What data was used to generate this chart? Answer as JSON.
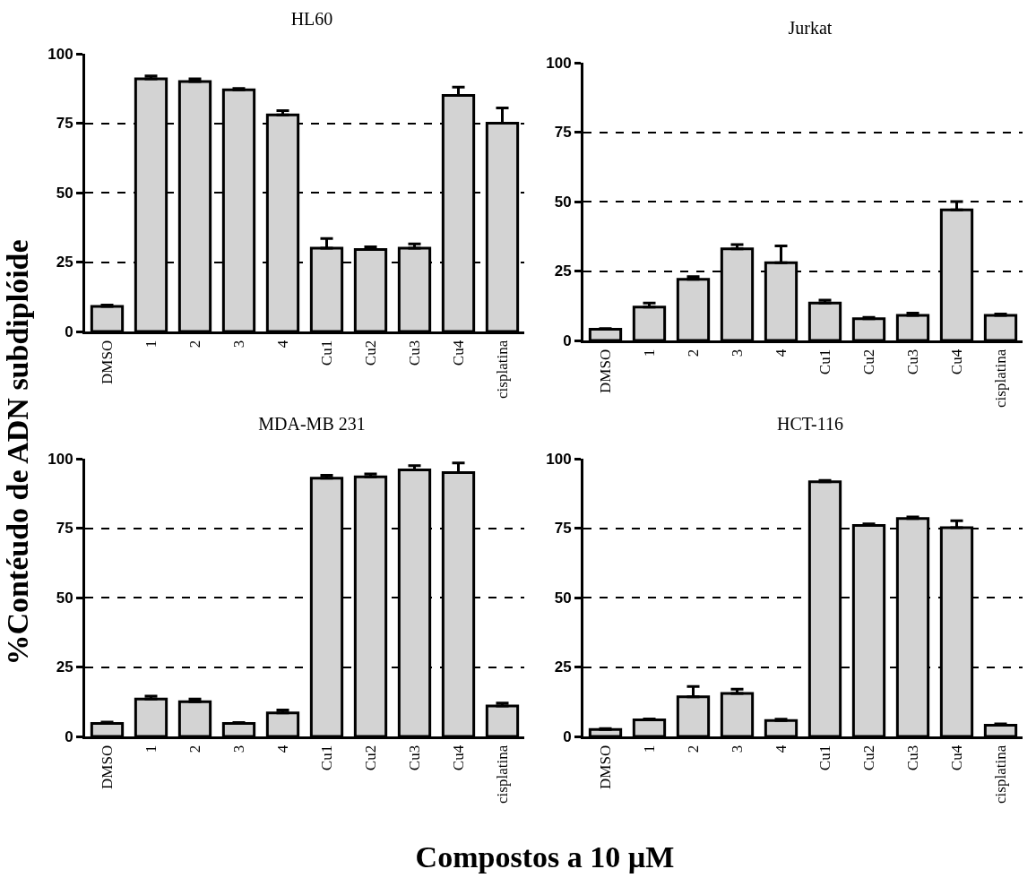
{
  "chart_data": [
    {
      "type": "bar",
      "title": "HL60",
      "ylabel": "%Contéudo de ADN subdiplóide",
      "categories": [
        "DMSO",
        "1",
        "2",
        "3",
        "4",
        "Cu1",
        "Cu2",
        "Cu3",
        "Cu4",
        "cisplatina"
      ],
      "values": [
        9,
        91,
        90,
        87,
        78,
        30,
        29.5,
        30,
        85,
        75
      ],
      "errors": [
        [
          9,
          9.5
        ],
        [
          91,
          92
        ],
        [
          90,
          91
        ],
        [
          87,
          87.5
        ],
        [
          78,
          79.5
        ],
        [
          30,
          33.5
        ],
        [
          29.5,
          30.5
        ],
        [
          30,
          31.5
        ],
        [
          85,
          88
        ],
        [
          75,
          80.5
        ]
      ],
      "color": "#d3d3d3",
      "ylim": [
        0,
        100
      ],
      "yticks": [
        0,
        25,
        50,
        75,
        100
      ],
      "grid": "y"
    },
    {
      "type": "bar",
      "title": "Jurkat",
      "categories": [
        "DMSO",
        "1",
        "2",
        "3",
        "4",
        "Cu1",
        "Cu2",
        "Cu3",
        "Cu4",
        "cisplatina"
      ],
      "values": [
        4,
        12,
        22,
        33,
        28,
        13.5,
        7.8,
        9,
        47,
        9
      ],
      "errors": [
        [
          4,
          4.3
        ],
        [
          12,
          13.5
        ],
        [
          22,
          23
        ],
        [
          33,
          34.5
        ],
        [
          28,
          34
        ],
        [
          13.5,
          14.5
        ],
        [
          7.8,
          8.3
        ],
        [
          9,
          9.8
        ],
        [
          47,
          50
        ],
        [
          9,
          9.5
        ]
      ],
      "color": "#d3d3d3",
      "ylim": [
        0,
        100
      ],
      "yticks": [
        0,
        25,
        50,
        75,
        100
      ],
      "grid": "y"
    },
    {
      "type": "bar",
      "title": "MDA-MB 231",
      "xlabel": "Compostos a 10 µM",
      "categories": [
        "DMSO",
        "1",
        "2",
        "3",
        "4",
        "Cu1",
        "Cu2",
        "Cu3",
        "Cu4",
        "cisplatina"
      ],
      "values": [
        4.7,
        13.5,
        12.5,
        4.7,
        8.5,
        93,
        93.5,
        96,
        95,
        11
      ],
      "errors": [
        [
          4.7,
          5.2
        ],
        [
          13.5,
          14.5
        ],
        [
          12.5,
          13.5
        ],
        [
          4.7,
          5
        ],
        [
          8.5,
          9.5
        ],
        [
          93,
          94
        ],
        [
          93.5,
          94.5
        ],
        [
          96,
          97.5
        ],
        [
          95,
          98.5
        ],
        [
          11,
          12
        ]
      ],
      "color": "#d3d3d3",
      "ylim": [
        0,
        100
      ],
      "yticks": [
        0,
        25,
        50,
        75,
        100
      ],
      "grid": "y"
    },
    {
      "type": "bar",
      "title": "HCT-116",
      "categories": [
        "DMSO",
        "1",
        "2",
        "3",
        "4",
        "Cu1",
        "Cu2",
        "Cu3",
        "Cu4",
        "cisplatina"
      ],
      "values": [
        2.5,
        6,
        14.3,
        15.5,
        5.7,
        91.7,
        76,
        78.5,
        75.2,
        4
      ],
      "errors": [
        [
          2.5,
          2.8
        ],
        [
          6,
          6.3
        ],
        [
          14.3,
          18
        ],
        [
          15.5,
          17
        ],
        [
          5.7,
          6.2
        ],
        [
          91.7,
          92.2
        ],
        [
          76,
          76.5
        ],
        [
          78.5,
          79
        ],
        [
          75.2,
          77.7
        ],
        [
          4,
          4.5
        ]
      ],
      "color": "#d3d3d3",
      "ylim": [
        0,
        100
      ],
      "yticks": [
        0,
        25,
        50,
        75,
        100
      ],
      "grid": "y"
    }
  ]
}
